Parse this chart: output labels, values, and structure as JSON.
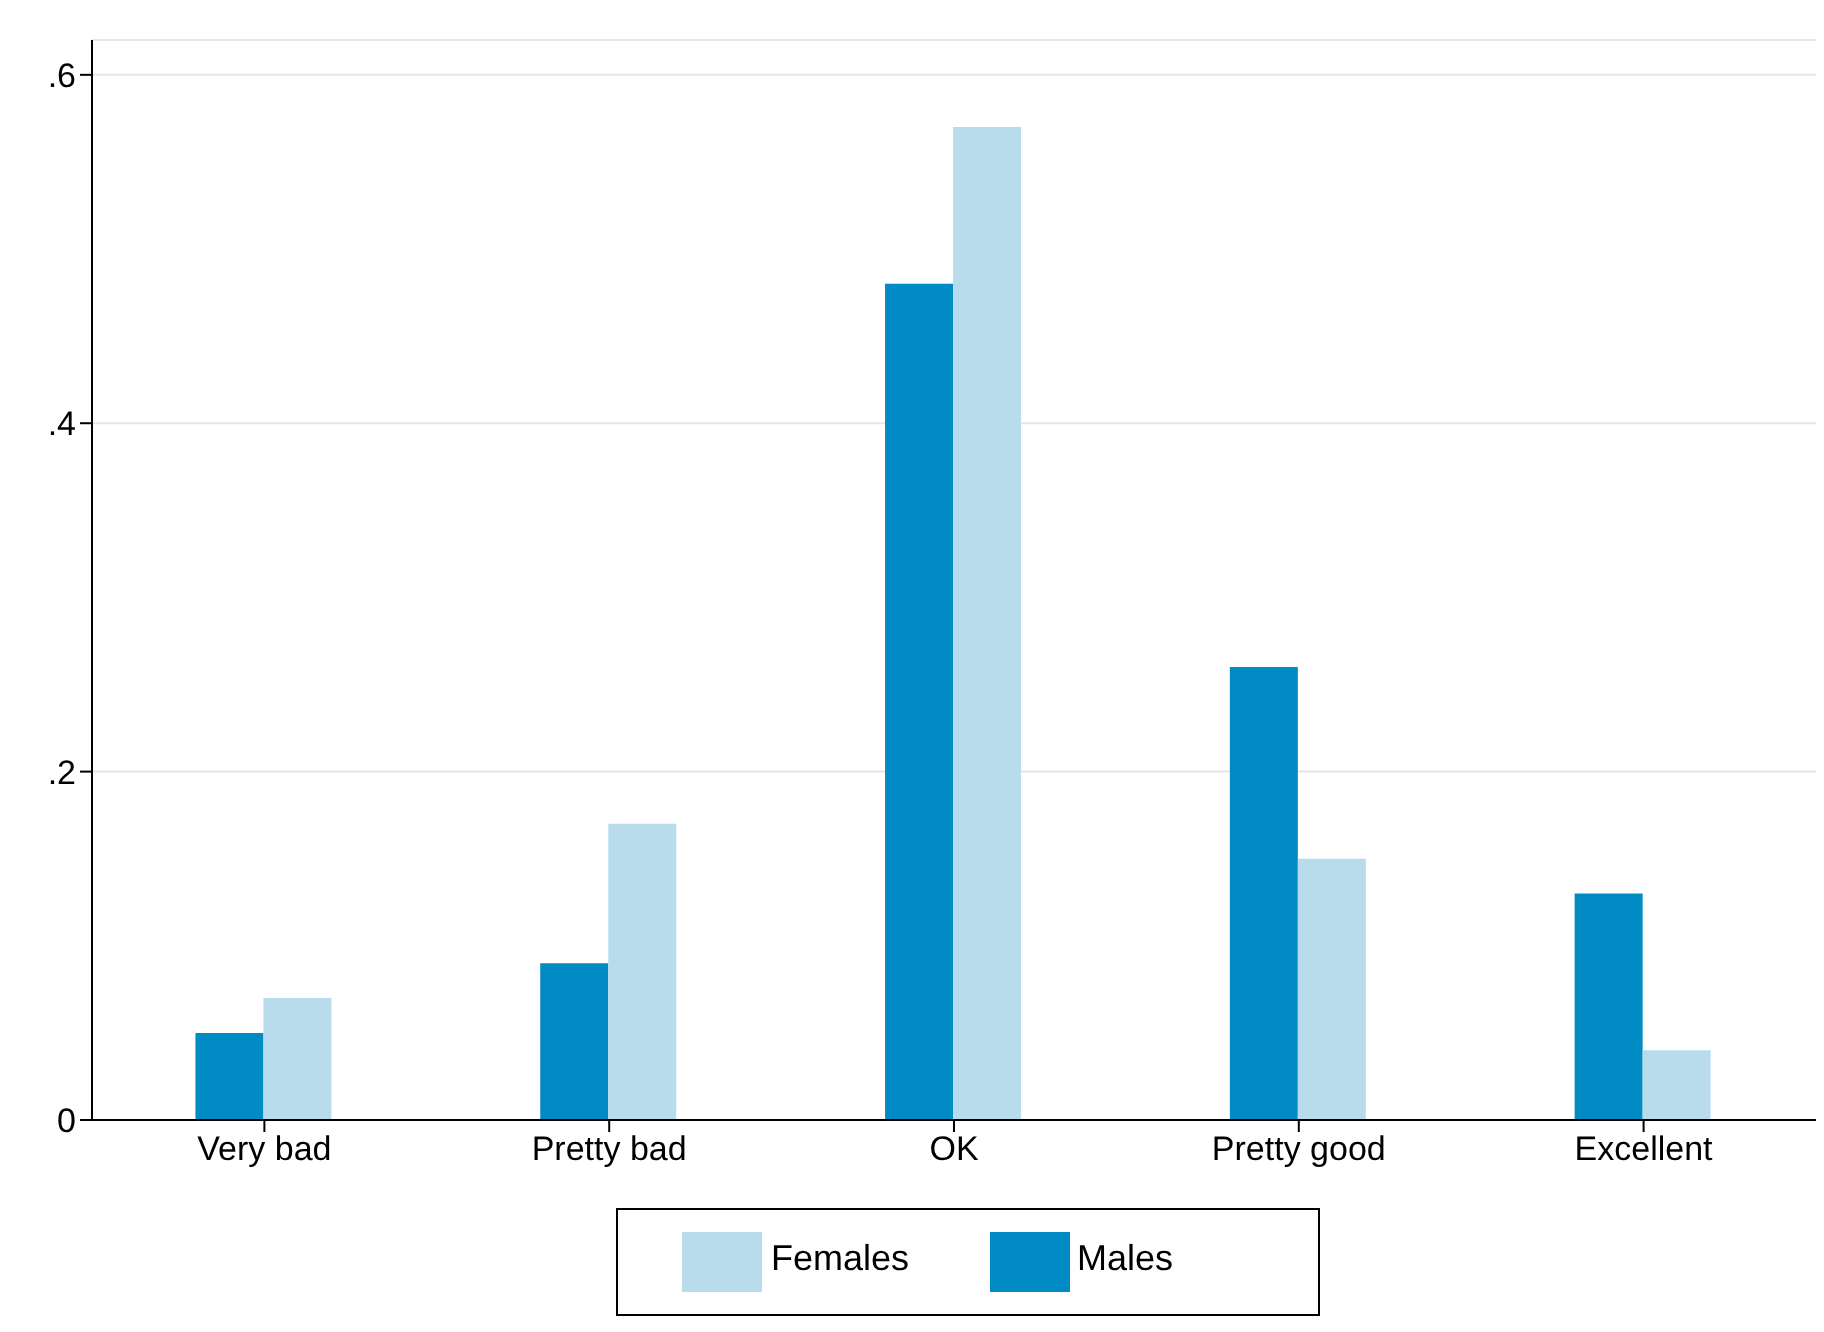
{
  "chart_data": {
    "type": "bar",
    "categories": [
      "Very bad",
      "Pretty bad",
      "OK",
      "Pretty good",
      "Excellent"
    ],
    "series": [
      {
        "name": "Males",
        "color": "#008bc4",
        "values": [
          0.05,
          0.09,
          0.48,
          0.26,
          0.13
        ]
      },
      {
        "name": "Females",
        "color": "#b9dcec",
        "values": [
          0.07,
          0.17,
          0.57,
          0.15,
          0.04
        ]
      }
    ],
    "ylim": [
      0,
      0.62
    ],
    "yticks": [
      {
        "value": 0,
        "label": "0"
      },
      {
        "value": 0.2,
        "label": ".2"
      },
      {
        "value": 0.4,
        "label": ".4"
      },
      {
        "value": 0.6,
        "label": ".6"
      }
    ],
    "grid": "y",
    "legend": "bottom"
  }
}
